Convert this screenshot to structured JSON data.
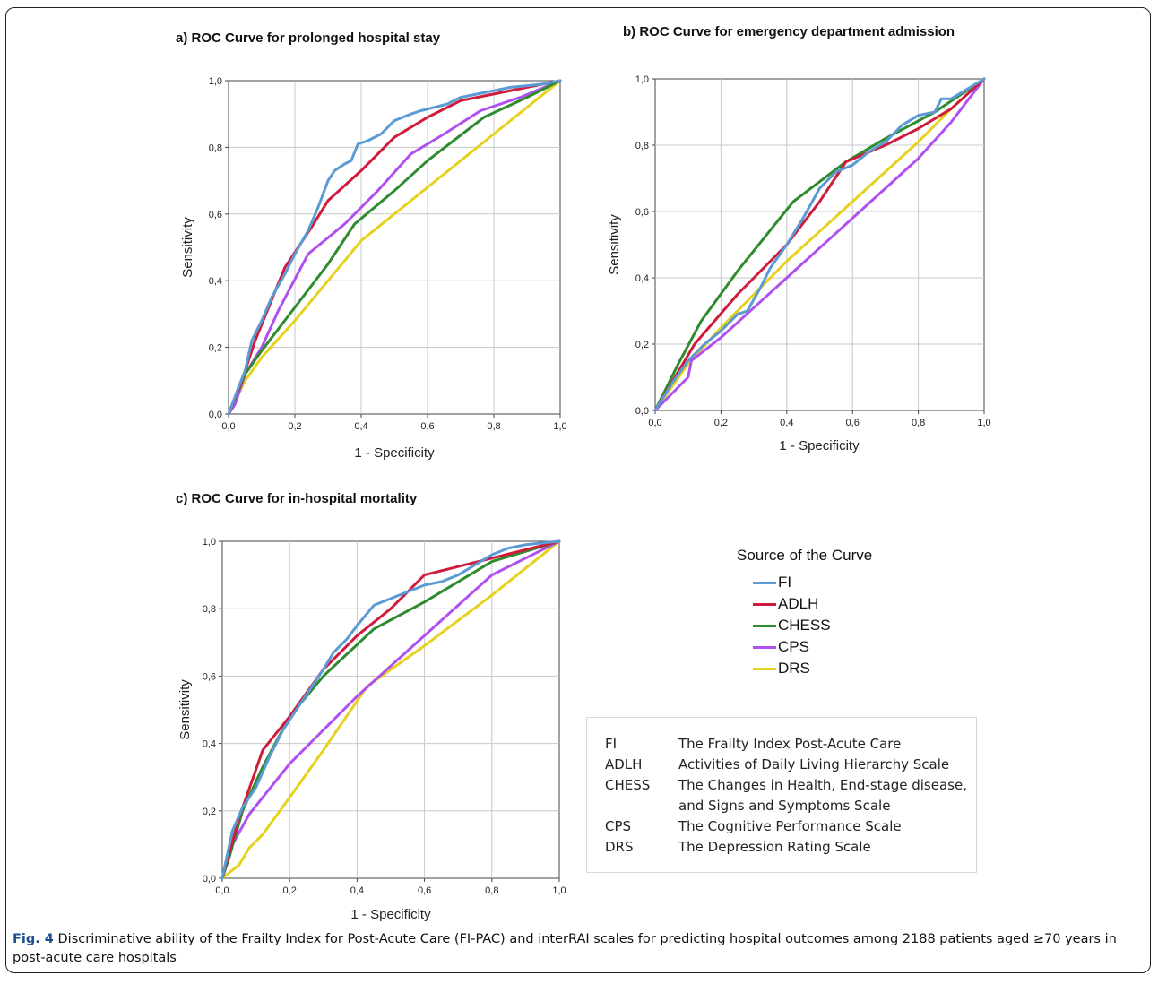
{
  "figure": {
    "caption_label": "Fig. 4",
    "caption_text": " Discriminative ability of the Frailty Index for Post-Acute Care (FI-PAC) and interRAI scales for predicting hospital outcomes among 2188 patients aged ≥70 years in post-acute care hospitals"
  },
  "colors": {
    "FI": "#5b9bd5",
    "ADLH": "#d01c3c",
    "CHESS": "#2e8b2e",
    "CPS": "#b050f0",
    "DRS": "#e6d21c"
  },
  "legend": {
    "title": "Source of the Curve",
    "items": [
      "FI",
      "ADLH",
      "CHESS",
      "CPS",
      "DRS"
    ]
  },
  "abbreviations": [
    {
      "key": "FI",
      "desc": "The Frailty Index Post-Acute Care"
    },
    {
      "key": "ADLH",
      "desc": "Activities of Daily Living Hierarchy Scale"
    },
    {
      "key": "CHESS",
      "desc": "The Changes in Health, End-stage disease, and Signs and Symptoms Scale"
    },
    {
      "key": "CPS",
      "desc": "The Cognitive Performance Scale"
    },
    {
      "key": "DRS",
      "desc": "The Depression Rating Scale"
    }
  ],
  "chart_data": [
    {
      "type": "line",
      "title": "a) ROC Curve for prolonged hospital stay",
      "xlabel": "1 - Specificity",
      "ylabel": "Sensitivity",
      "xlim": [
        0,
        1
      ],
      "ylim": [
        0,
        1
      ],
      "ticks": [
        "0,0",
        "0,2",
        "0,4",
        "0,6",
        "0,8",
        "1,0"
      ],
      "grid": true,
      "series": [
        {
          "name": "FI",
          "x": [
            0,
            0.03,
            0.05,
            0.07,
            0.1,
            0.13,
            0.17,
            0.2,
            0.24,
            0.27,
            0.3,
            0.32,
            0.35,
            0.37,
            0.39,
            0.42,
            0.46,
            0.5,
            0.55,
            0.58,
            0.62,
            0.66,
            0.7,
            0.75,
            0.8,
            0.85,
            0.9,
            0.95,
            1.0
          ],
          "y": [
            0,
            0.08,
            0.13,
            0.22,
            0.28,
            0.35,
            0.42,
            0.48,
            0.55,
            0.62,
            0.7,
            0.73,
            0.75,
            0.76,
            0.81,
            0.82,
            0.84,
            0.88,
            0.9,
            0.91,
            0.92,
            0.93,
            0.95,
            0.96,
            0.97,
            0.98,
            0.985,
            0.99,
            1.0
          ]
        },
        {
          "name": "ADLH",
          "x": [
            0,
            0.04,
            0.08,
            0.17,
            0.25,
            0.3,
            0.4,
            0.5,
            0.6,
            0.7,
            0.8,
            0.9,
            1.0
          ],
          "y": [
            0,
            0.1,
            0.22,
            0.44,
            0.56,
            0.64,
            0.73,
            0.83,
            0.89,
            0.94,
            0.96,
            0.98,
            1.0
          ]
        },
        {
          "name": "CHESS",
          "x": [
            0,
            0.05,
            0.1,
            0.2,
            0.3,
            0.38,
            0.5,
            0.6,
            0.77,
            0.9,
            1.0
          ],
          "y": [
            0,
            0.12,
            0.19,
            0.32,
            0.45,
            0.57,
            0.67,
            0.76,
            0.89,
            0.95,
            1.0
          ]
        },
        {
          "name": "CPS",
          "x": [
            0,
            0.02,
            0.05,
            0.1,
            0.15,
            0.24,
            0.35,
            0.45,
            0.55,
            0.65,
            0.76,
            0.88,
            1.0
          ],
          "y": [
            0,
            0.03,
            0.12,
            0.2,
            0.31,
            0.48,
            0.57,
            0.67,
            0.78,
            0.84,
            0.91,
            0.95,
            1.0
          ]
        },
        {
          "name": "DRS",
          "x": [
            0,
            0.05,
            0.1,
            0.2,
            0.3,
            0.4,
            0.5,
            0.6,
            0.7,
            0.8,
            0.9,
            1.0
          ],
          "y": [
            0,
            0.1,
            0.17,
            0.28,
            0.4,
            0.52,
            0.6,
            0.68,
            0.76,
            0.84,
            0.92,
            1.0
          ]
        }
      ]
    },
    {
      "type": "line",
      "title": "b) ROC Curve for emergency department admission",
      "xlabel": "1 - Specificity",
      "ylabel": "Sensitivity",
      "xlim": [
        0,
        1
      ],
      "ylim": [
        0,
        1
      ],
      "ticks": [
        "0,0",
        "0,2",
        "0,4",
        "0,6",
        "0,8",
        "1,0"
      ],
      "grid": true,
      "series": [
        {
          "name": "FI",
          "x": [
            0,
            0.05,
            0.1,
            0.15,
            0.2,
            0.25,
            0.28,
            0.32,
            0.35,
            0.4,
            0.45,
            0.5,
            0.55,
            0.6,
            0.65,
            0.7,
            0.75,
            0.8,
            0.85,
            0.87,
            0.9,
            1.0
          ],
          "y": [
            0,
            0.08,
            0.15,
            0.2,
            0.24,
            0.29,
            0.3,
            0.37,
            0.43,
            0.5,
            0.58,
            0.67,
            0.72,
            0.74,
            0.78,
            0.81,
            0.86,
            0.89,
            0.9,
            0.94,
            0.94,
            1.0
          ]
        },
        {
          "name": "ADLH",
          "x": [
            0,
            0.12,
            0.25,
            0.4,
            0.5,
            0.58,
            0.7,
            0.8,
            0.9,
            1.0
          ],
          "y": [
            0,
            0.2,
            0.35,
            0.5,
            0.63,
            0.75,
            0.8,
            0.85,
            0.91,
            1.0
          ]
        },
        {
          "name": "CHESS",
          "x": [
            0,
            0.07,
            0.14,
            0.25,
            0.42,
            0.58,
            0.7,
            0.85,
            1.0
          ],
          "y": [
            0,
            0.14,
            0.27,
            0.42,
            0.63,
            0.75,
            0.82,
            0.9,
            1.0
          ]
        },
        {
          "name": "CPS",
          "x": [
            0,
            0.05,
            0.1,
            0.11,
            0.2,
            0.3,
            0.4,
            0.5,
            0.6,
            0.7,
            0.8,
            0.9,
            1.0
          ],
          "y": [
            0,
            0.05,
            0.1,
            0.15,
            0.22,
            0.31,
            0.4,
            0.49,
            0.58,
            0.67,
            0.76,
            0.87,
            1.0
          ]
        },
        {
          "name": "DRS",
          "x": [
            0,
            0.1,
            0.2,
            0.3,
            0.4,
            0.5,
            0.6,
            0.7,
            0.8,
            0.9,
            1.0
          ],
          "y": [
            0,
            0.14,
            0.25,
            0.35,
            0.45,
            0.54,
            0.63,
            0.72,
            0.81,
            0.91,
            1.0
          ]
        }
      ]
    },
    {
      "type": "line",
      "title": "c) ROC Curve for in-hospital mortality",
      "xlabel": "1 - Specificity",
      "ylabel": "Sensitivity",
      "xlim": [
        0,
        1
      ],
      "ylim": [
        0,
        1
      ],
      "ticks": [
        "0,0",
        "0,2",
        "0,4",
        "0,6",
        "0,8",
        "1,0"
      ],
      "grid": true,
      "series": [
        {
          "name": "FI",
          "x": [
            0,
            0.03,
            0.06,
            0.1,
            0.14,
            0.18,
            0.22,
            0.26,
            0.3,
            0.33,
            0.37,
            0.4,
            0.45,
            0.5,
            0.55,
            0.6,
            0.65,
            0.7,
            0.75,
            0.8,
            0.85,
            0.9,
            1.0
          ],
          "y": [
            0,
            0.14,
            0.21,
            0.27,
            0.36,
            0.44,
            0.5,
            0.56,
            0.62,
            0.67,
            0.71,
            0.75,
            0.81,
            0.83,
            0.85,
            0.87,
            0.88,
            0.9,
            0.93,
            0.96,
            0.98,
            0.99,
            1.0
          ]
        },
        {
          "name": "ADLH",
          "x": [
            0,
            0.05,
            0.12,
            0.2,
            0.3,
            0.4,
            0.5,
            0.6,
            0.8,
            1.0
          ],
          "y": [
            0,
            0.18,
            0.38,
            0.48,
            0.62,
            0.72,
            0.8,
            0.9,
            0.95,
            1.0
          ]
        },
        {
          "name": "CHESS",
          "x": [
            0,
            0.02,
            0.06,
            0.12,
            0.2,
            0.3,
            0.45,
            0.6,
            0.8,
            1.0
          ],
          "y": [
            0,
            0.06,
            0.2,
            0.33,
            0.48,
            0.6,
            0.74,
            0.82,
            0.94,
            1.0
          ]
        },
        {
          "name": "CPS",
          "x": [
            0,
            0.03,
            0.08,
            0.12,
            0.2,
            0.3,
            0.4,
            0.5,
            0.6,
            0.7,
            0.8,
            0.9,
            1.0
          ],
          "y": [
            0,
            0.1,
            0.19,
            0.24,
            0.34,
            0.44,
            0.54,
            0.63,
            0.72,
            0.81,
            0.9,
            0.95,
            1.0
          ]
        },
        {
          "name": "DRS",
          "x": [
            0,
            0.05,
            0.08,
            0.12,
            0.2,
            0.3,
            0.43,
            0.6,
            0.8,
            1.0
          ],
          "y": [
            0,
            0.04,
            0.09,
            0.13,
            0.24,
            0.38,
            0.57,
            0.69,
            0.84,
            1.0
          ]
        }
      ]
    }
  ]
}
